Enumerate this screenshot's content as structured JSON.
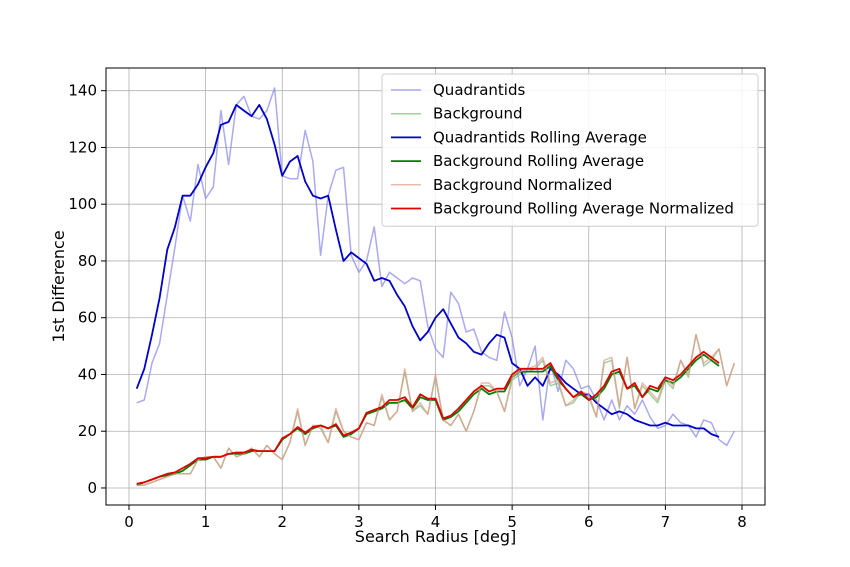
{
  "chart_data": {
    "type": "line",
    "xlabel": "Search Radius [deg]",
    "ylabel": "1st Difference",
    "xlim": [
      -0.3,
      8.3
    ],
    "ylim": [
      -6,
      148
    ],
    "xticks": [
      0,
      1,
      2,
      3,
      4,
      5,
      6,
      7,
      8
    ],
    "yticks": [
      0,
      20,
      40,
      60,
      80,
      100,
      120,
      140
    ],
    "grid": true,
    "legend_position": "top-right",
    "series": [
      {
        "name": "Quadrantids",
        "color": "#8c8cf0",
        "opacity": 0.75,
        "width": 1.5,
        "x": [
          0.1,
          0.2,
          0.3,
          0.4,
          0.5,
          0.6,
          0.7,
          0.8,
          0.9,
          1.0,
          1.1,
          1.2,
          1.3,
          1.4,
          1.5,
          1.6,
          1.7,
          1.8,
          1.9,
          2.0,
          2.1,
          2.2,
          2.3,
          2.4,
          2.5,
          2.6,
          2.7,
          2.8,
          2.9,
          3.0,
          3.1,
          3.2,
          3.3,
          3.4,
          3.5,
          3.6,
          3.7,
          3.8,
          3.9,
          4.0,
          4.1,
          4.2,
          4.3,
          4.4,
          4.5,
          4.6,
          4.7,
          4.8,
          4.9,
          5.0,
          5.1,
          5.2,
          5.3,
          5.4,
          5.5,
          5.6,
          5.7,
          5.8,
          5.9,
          6.0,
          6.1,
          6.2,
          6.3,
          6.4,
          6.5,
          6.6,
          6.7,
          6.8,
          6.9,
          7.0,
          7.1,
          7.2,
          7.3,
          7.4,
          7.5,
          7.6,
          7.7,
          7.8,
          7.9
        ],
        "values": [
          30,
          31,
          44,
          51,
          68,
          85,
          103,
          94,
          114,
          102,
          106,
          133,
          114,
          135,
          138,
          131,
          130,
          133,
          141,
          110,
          109,
          109,
          126,
          115,
          82,
          103,
          112,
          113,
          82,
          76,
          80,
          92,
          71,
          76,
          74,
          72,
          74,
          73,
          57,
          49,
          46,
          69,
          65,
          55,
          56,
          48,
          46,
          45,
          62,
          53,
          36,
          42,
          50,
          24,
          44,
          34,
          45,
          42,
          35,
          36,
          31,
          24,
          31,
          24,
          29,
          26,
          31,
          25,
          21,
          22,
          26,
          23,
          22,
          18,
          24,
          23,
          17,
          15,
          20
        ]
      },
      {
        "name": "Background",
        "color": "#80c080",
        "opacity": 0.75,
        "width": 1.5,
        "x": [
          0.1,
          0.2,
          0.3,
          0.4,
          0.5,
          0.6,
          0.7,
          0.8,
          0.9,
          1.0,
          1.1,
          1.2,
          1.3,
          1.4,
          1.5,
          1.6,
          1.7,
          1.8,
          1.9,
          2.0,
          2.1,
          2.2,
          2.3,
          2.4,
          2.5,
          2.6,
          2.7,
          2.8,
          2.9,
          3.0,
          3.1,
          3.2,
          3.3,
          3.4,
          3.5,
          3.6,
          3.7,
          3.8,
          3.9,
          4.0,
          4.1,
          4.2,
          4.3,
          4.4,
          4.5,
          4.6,
          4.7,
          4.8,
          4.9,
          5.0,
          5.1,
          5.2,
          5.3,
          5.4,
          5.5,
          5.6,
          5.7,
          5.8,
          5.9,
          6.0,
          6.1,
          6.2,
          6.3,
          6.4,
          6.5,
          6.6,
          6.7,
          6.8,
          6.9,
          7.0,
          7.1,
          7.2,
          7.3,
          7.4,
          7.5,
          7.6,
          7.7,
          7.8,
          7.9
        ],
        "values": [
          1,
          1,
          2,
          3,
          4,
          5,
          5,
          5,
          10,
          11,
          11,
          7,
          14,
          11,
          12,
          14,
          11,
          15,
          12,
          10,
          16,
          27,
          15,
          22,
          21,
          16,
          27,
          20,
          18,
          17,
          23,
          22,
          32,
          24,
          27,
          41,
          27,
          29,
          26,
          39,
          24,
          22,
          26,
          20,
          27,
          36,
          36,
          34,
          27,
          38,
          40,
          41,
          42,
          45,
          36,
          37,
          29,
          30,
          34,
          32,
          25,
          44,
          45,
          28,
          46,
          28,
          36,
          33,
          30,
          38,
          35,
          45,
          39,
          54,
          43,
          45,
          49,
          36,
          44
        ]
      },
      {
        "name": "Quadrantids Rolling Average",
        "color": "#0000c8",
        "opacity": 1,
        "width": 1.8,
        "x": [
          0.1,
          0.2,
          0.3,
          0.4,
          0.5,
          0.6,
          0.7,
          0.8,
          0.9,
          1.0,
          1.1,
          1.2,
          1.3,
          1.4,
          1.5,
          1.6,
          1.7,
          1.8,
          1.9,
          2.0,
          2.1,
          2.2,
          2.3,
          2.4,
          2.5,
          2.6,
          2.7,
          2.8,
          2.9,
          3.0,
          3.1,
          3.2,
          3.3,
          3.4,
          3.5,
          3.6,
          3.7,
          3.8,
          3.9,
          4.0,
          4.1,
          4.2,
          4.3,
          4.4,
          4.5,
          4.6,
          4.7,
          4.8,
          4.9,
          5.0,
          5.1,
          5.2,
          5.3,
          5.4,
          5.5,
          5.6,
          5.7,
          5.8,
          5.9,
          6.0,
          6.1,
          6.2,
          6.3,
          6.4,
          6.5,
          6.6,
          6.7,
          6.8,
          6.9,
          7.0,
          7.1,
          7.2,
          7.3,
          7.4,
          7.5,
          7.6,
          7.7
        ],
        "values": [
          35,
          42,
          54,
          67,
          84,
          92,
          103,
          103,
          107,
          113,
          118,
          128,
          129,
          135,
          133,
          131,
          135,
          130,
          121,
          110,
          115,
          117,
          108,
          103,
          102,
          103,
          91,
          80,
          83,
          81,
          79,
          73,
          74,
          73,
          68,
          64,
          57,
          52,
          55,
          60,
          63,
          58,
          53,
          51,
          48,
          47,
          51,
          54,
          53,
          44,
          42,
          36,
          39,
          36,
          42,
          40,
          37,
          35,
          33,
          33,
          30,
          28,
          26,
          27,
          26,
          24,
          23,
          22,
          22,
          23,
          22,
          22,
          22,
          21,
          21,
          19,
          18
        ]
      },
      {
        "name": "Background Rolling Average",
        "color": "#008000",
        "opacity": 1,
        "width": 1.8,
        "x": [
          0.1,
          0.2,
          0.3,
          0.4,
          0.5,
          0.6,
          0.7,
          0.8,
          0.9,
          1.0,
          1.1,
          1.2,
          1.3,
          1.4,
          1.5,
          1.6,
          1.7,
          1.8,
          1.9,
          2.0,
          2.1,
          2.2,
          2.3,
          2.4,
          2.5,
          2.6,
          2.7,
          2.8,
          2.9,
          3.0,
          3.1,
          3.2,
          3.3,
          3.4,
          3.5,
          3.6,
          3.7,
          3.8,
          3.9,
          4.0,
          4.1,
          4.2,
          4.3,
          4.4,
          4.5,
          4.6,
          4.7,
          4.8,
          4.9,
          5.0,
          5.1,
          5.2,
          5.3,
          5.4,
          5.5,
          5.6,
          5.7,
          5.8,
          5.9,
          6.0,
          6.1,
          6.2,
          6.3,
          6.4,
          6.5,
          6.6,
          6.7,
          6.8,
          6.9,
          7.0,
          7.1,
          7.2,
          7.3,
          7.4,
          7.5,
          7.6,
          7.7
        ],
        "values": [
          1,
          2,
          3,
          4,
          4.5,
          5,
          6,
          8,
          10,
          10,
          11,
          11,
          12,
          12,
          12,
          13,
          13,
          13,
          13,
          17,
          19,
          21,
          19,
          21,
          22,
          21,
          22,
          18,
          19,
          21,
          26,
          27,
          28,
          30,
          30,
          31,
          28,
          32,
          31,
          31,
          24,
          25,
          27,
          30,
          33,
          35,
          33,
          34,
          34,
          39,
          41,
          41,
          41,
          41,
          43,
          38,
          35,
          32,
          33,
          31,
          32,
          35,
          40,
          41,
          35,
          36,
          32,
          35,
          34,
          38,
          37,
          39,
          42,
          45,
          47,
          45,
          43
        ]
      },
      {
        "name": "Background  Normalized",
        "color": "#e89a8a",
        "opacity": 0.7,
        "width": 1.5,
        "x": [
          0.1,
          0.2,
          0.3,
          0.4,
          0.5,
          0.6,
          0.7,
          0.8,
          0.9,
          1.0,
          1.1,
          1.2,
          1.3,
          1.4,
          1.5,
          1.6,
          1.7,
          1.8,
          1.9,
          2.0,
          2.1,
          2.2,
          2.3,
          2.4,
          2.5,
          2.6,
          2.7,
          2.8,
          2.9,
          3.0,
          3.1,
          3.2,
          3.3,
          3.4,
          3.5,
          3.6,
          3.7,
          3.8,
          3.9,
          4.0,
          4.1,
          4.2,
          4.3,
          4.4,
          4.5,
          4.6,
          4.7,
          4.8,
          4.9,
          5.0,
          5.1,
          5.2,
          5.3,
          5.4,
          5.5,
          5.6,
          5.7,
          5.8,
          5.9,
          6.0,
          6.1,
          6.2,
          6.3,
          6.4,
          6.5,
          6.6,
          6.7,
          6.8,
          6.9,
          7.0,
          7.1,
          7.2,
          7.3,
          7.4,
          7.5,
          7.6,
          7.7,
          7.8,
          7.9
        ],
        "values": [
          1,
          1,
          2,
          3,
          4,
          5,
          5,
          5,
          10,
          11,
          11,
          7,
          14,
          11,
          12,
          14,
          11,
          15,
          12,
          10,
          16,
          28,
          15,
          22,
          22,
          16,
          28,
          20,
          18,
          17,
          23,
          22,
          33,
          24,
          27,
          42,
          27,
          30,
          26,
          40,
          24,
          22,
          26,
          20,
          27,
          37,
          37,
          34,
          27,
          39,
          41,
          42,
          43,
          46,
          37,
          38,
          29,
          31,
          34,
          33,
          25,
          45,
          46,
          29,
          46,
          28,
          37,
          34,
          31,
          39,
          36,
          45,
          40,
          54,
          44,
          46,
          49,
          36,
          44
        ]
      },
      {
        "name": "Background Rolling Average Normalized",
        "color": "#e00000",
        "opacity": 1,
        "width": 1.8,
        "x": [
          0.1,
          0.2,
          0.3,
          0.4,
          0.5,
          0.6,
          0.7,
          0.8,
          0.9,
          1.0,
          1.1,
          1.2,
          1.3,
          1.4,
          1.5,
          1.6,
          1.7,
          1.8,
          1.9,
          2.0,
          2.1,
          2.2,
          2.3,
          2.4,
          2.5,
          2.6,
          2.7,
          2.8,
          2.9,
          3.0,
          3.1,
          3.2,
          3.3,
          3.4,
          3.5,
          3.6,
          3.7,
          3.8,
          3.9,
          4.0,
          4.1,
          4.2,
          4.3,
          4.4,
          4.5,
          4.6,
          4.7,
          4.8,
          4.9,
          5.0,
          5.1,
          5.2,
          5.3,
          5.4,
          5.5,
          5.6,
          5.7,
          5.8,
          5.9,
          6.0,
          6.1,
          6.2,
          6.3,
          6.4,
          6.5,
          6.6,
          6.7,
          6.8,
          6.9,
          7.0,
          7.1,
          7.2,
          7.3,
          7.4,
          7.5,
          7.6,
          7.7
        ],
        "values": [
          1.5,
          2,
          3,
          4,
          5,
          5.5,
          7,
          8.5,
          10.5,
          10.5,
          11,
          11,
          12,
          12.5,
          12.5,
          13.5,
          13,
          13,
          13,
          17.5,
          19,
          21.5,
          19.5,
          21.5,
          22,
          21,
          22.5,
          18.5,
          19.5,
          21,
          26.5,
          27.5,
          28.5,
          31,
          31,
          32,
          28.5,
          33,
          31.5,
          31.5,
          24.5,
          25.5,
          28,
          31,
          34,
          36,
          34,
          35,
          35,
          40,
          42,
          42,
          42,
          42,
          44,
          39,
          35,
          32,
          34,
          31,
          33,
          36,
          41,
          42,
          35,
          37,
          32,
          36,
          35,
          39,
          38,
          40,
          43,
          46,
          48,
          46,
          44
        ]
      }
    ]
  }
}
